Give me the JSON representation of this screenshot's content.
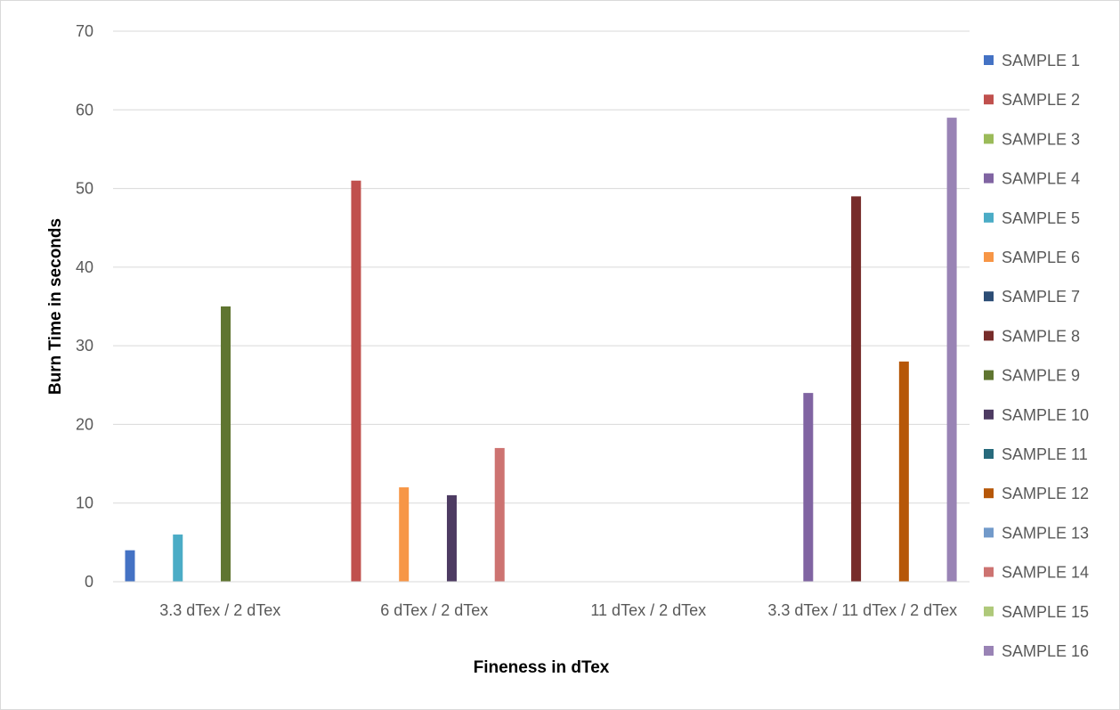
{
  "chart_data": {
    "type": "bar",
    "title": "",
    "xlabel": "Fineness in dTex",
    "ylabel": "Burn Time in seconds",
    "ylim": [
      0,
      70
    ],
    "yticks": [
      0,
      10,
      20,
      30,
      40,
      50,
      60,
      70
    ],
    "grid": true,
    "legend_position": "right",
    "categories": [
      "3.3 dTex / 2 dTex",
      "6 dTex / 2 dTex",
      "11 dTex / 2 dTex",
      "3.3 dTex / 11 dTex / 2 dTex"
    ],
    "series": [
      {
        "name": "SAMPLE 1",
        "color": "#4472c4",
        "values": [
          4,
          null,
          null,
          null
        ]
      },
      {
        "name": "SAMPLE 2",
        "color": "#c0504d",
        "values": [
          null,
          51,
          null,
          null
        ]
      },
      {
        "name": "SAMPLE 3",
        "color": "#9bbb59",
        "values": [
          null,
          null,
          null,
          null
        ]
      },
      {
        "name": "SAMPLE 4",
        "color": "#8064a2",
        "values": [
          null,
          null,
          null,
          24
        ]
      },
      {
        "name": "SAMPLE 5",
        "color": "#4bacc6",
        "values": [
          6,
          null,
          null,
          null
        ]
      },
      {
        "name": "SAMPLE 6",
        "color": "#f79646",
        "values": [
          null,
          12,
          null,
          null
        ]
      },
      {
        "name": "SAMPLE 7",
        "color": "#2c4d75",
        "values": [
          null,
          null,
          null,
          null
        ]
      },
      {
        "name": "SAMPLE 8",
        "color": "#772c2a",
        "values": [
          null,
          null,
          null,
          49
        ]
      },
      {
        "name": "SAMPLE 9",
        "color": "#5f7530",
        "values": [
          35,
          null,
          null,
          null
        ]
      },
      {
        "name": "SAMPLE 10",
        "color": "#4d3b62",
        "values": [
          null,
          11,
          null,
          null
        ]
      },
      {
        "name": "SAMPLE 11",
        "color": "#276a7c",
        "values": [
          null,
          null,
          null,
          null
        ]
      },
      {
        "name": "SAMPLE 12",
        "color": "#b65708",
        "values": [
          null,
          null,
          null,
          28
        ]
      },
      {
        "name": "SAMPLE 13",
        "color": "#729aca",
        "values": [
          null,
          null,
          null,
          null
        ]
      },
      {
        "name": "SAMPLE 14",
        "color": "#cd7371",
        "values": [
          null,
          17,
          null,
          null
        ]
      },
      {
        "name": "SAMPLE 15",
        "color": "#afc97a",
        "values": [
          null,
          null,
          null,
          null
        ]
      },
      {
        "name": "SAMPLE 16",
        "color": "#9983b5",
        "values": [
          null,
          null,
          null,
          59
        ]
      }
    ]
  }
}
